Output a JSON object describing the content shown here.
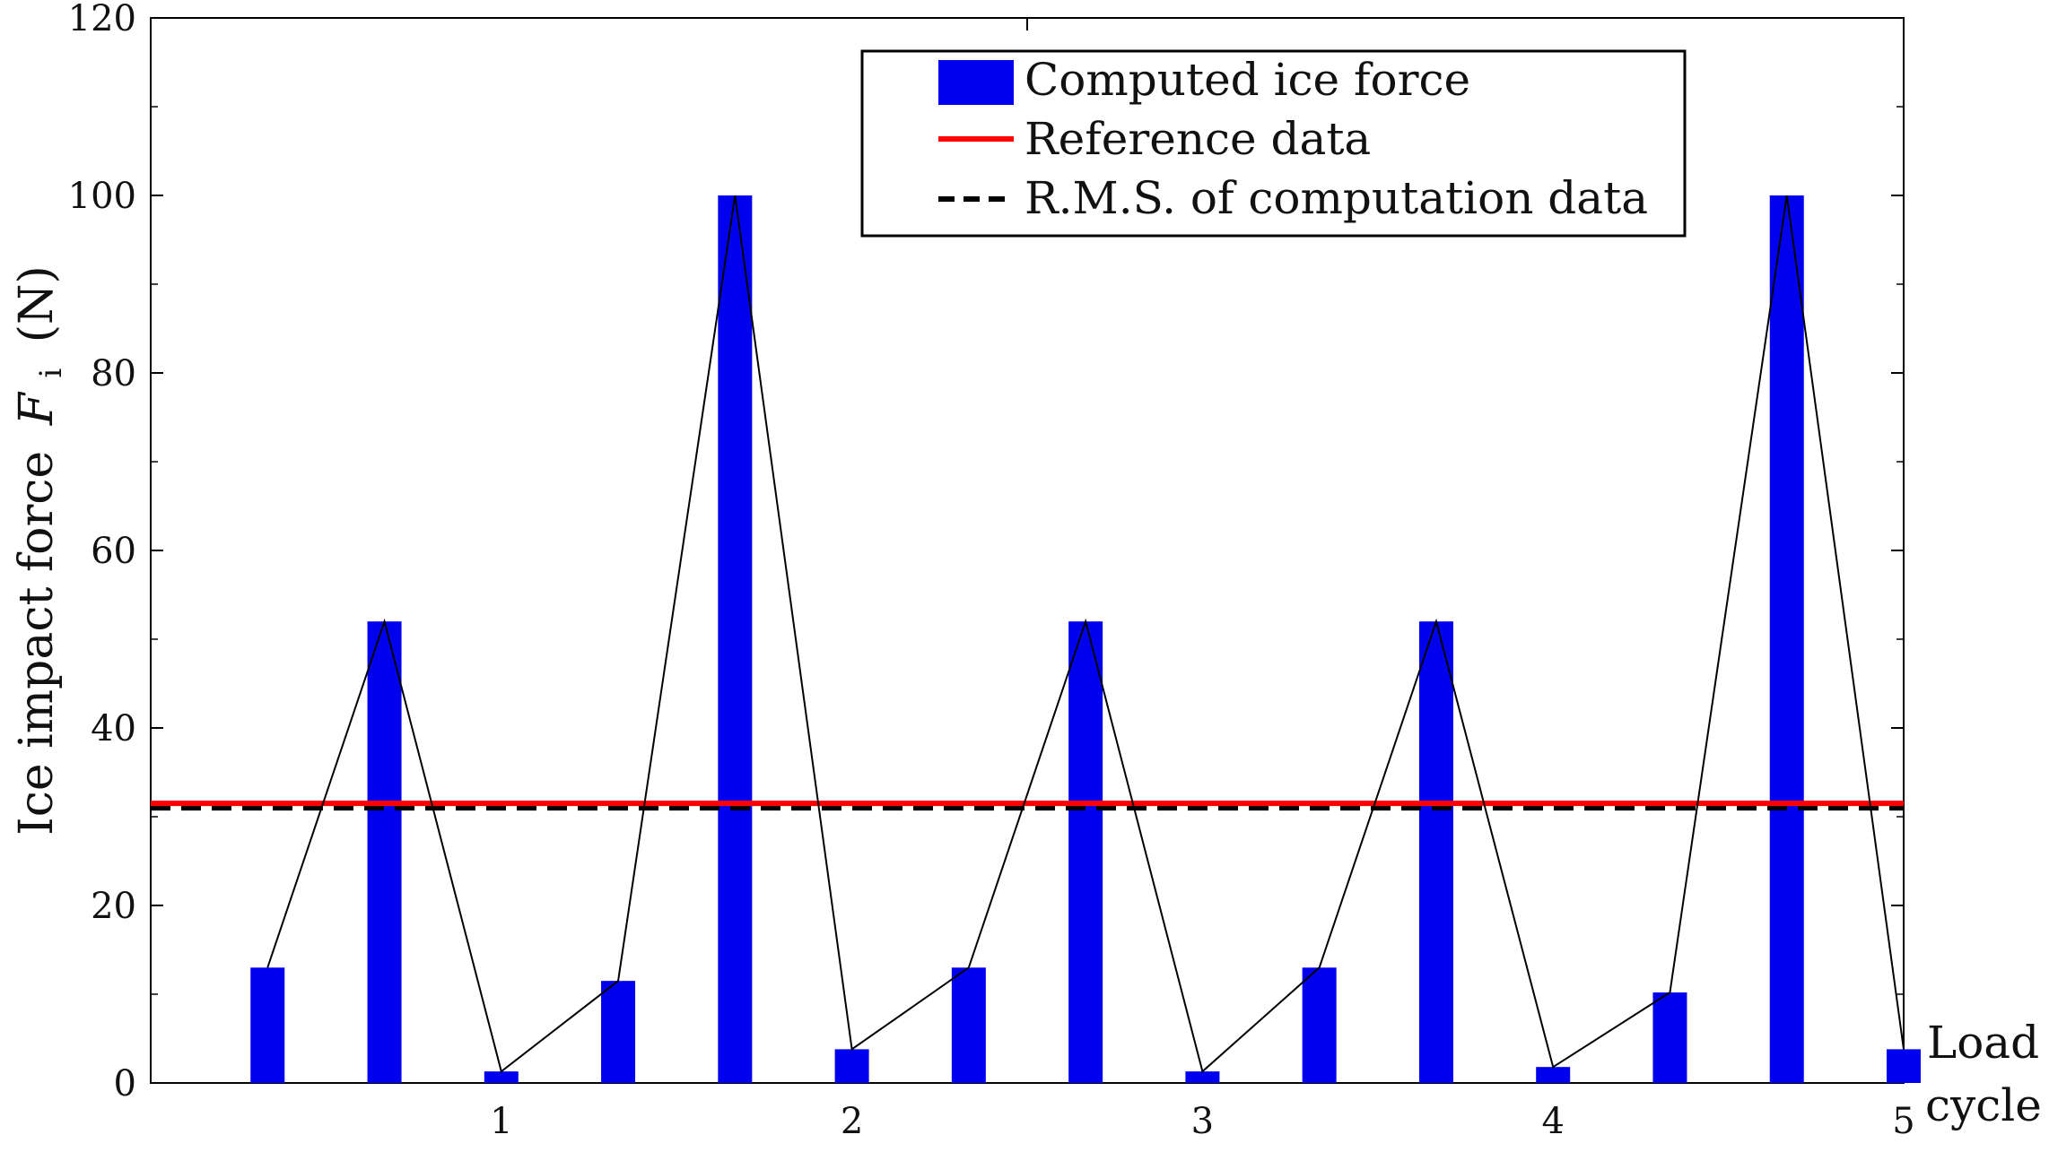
{
  "chart_data": {
    "type": "bar",
    "ylabel": "Ice impact force F_i (N)",
    "ylabel_parts": {
      "text": "Ice impact force",
      "symbol": "F",
      "subscript": "i",
      "unit": "(N)"
    },
    "xlabel": "Load cycle",
    "xlabel_lines": [
      "Load",
      "cycle"
    ],
    "ylim": [
      0,
      120
    ],
    "xlim": [
      0,
      5
    ],
    "yticks": [
      0,
      20,
      40,
      60,
      80,
      100,
      120
    ],
    "xticks": [
      1,
      2,
      3,
      4,
      5
    ],
    "series": [
      {
        "name": "Computed ice force",
        "kind": "bar",
        "color": "#0000ee",
        "x": [
          0.3333,
          0.6667,
          1.0,
          1.3333,
          1.6667,
          2.0,
          2.3333,
          2.6667,
          3.0,
          3.3333,
          3.6667,
          4.0,
          4.3333,
          4.6667,
          5.0
        ],
        "values": [
          13,
          52,
          1.3,
          11.5,
          100,
          3.8,
          13,
          52,
          1.3,
          13,
          52,
          1.8,
          10.2,
          100,
          3.8
        ]
      },
      {
        "name": "Reference data",
        "kind": "hline",
        "color": "#ff0000",
        "value": 31.5
      },
      {
        "name": "R.M.S. of computation data",
        "kind": "hline-dashed",
        "color": "#000000",
        "value": 31.0
      }
    ],
    "connector_line": {
      "color": "#000000",
      "x": [
        0.3333,
        0.6667,
        1.0,
        1.3333,
        1.6667,
        2.0,
        2.3333,
        2.6667,
        3.0,
        3.3333,
        3.6667,
        4.0,
        4.3333,
        4.6667,
        5.0
      ],
      "values": [
        13,
        52,
        1.3,
        11.5,
        100,
        3.8,
        13,
        52,
        1.3,
        13,
        52,
        1.8,
        10.2,
        100,
        3.8
      ]
    },
    "legend": {
      "placement": "top-right",
      "entries": [
        "Computed ice force",
        "Reference data",
        "R.M.S. of computation data"
      ]
    },
    "grid": false
  }
}
